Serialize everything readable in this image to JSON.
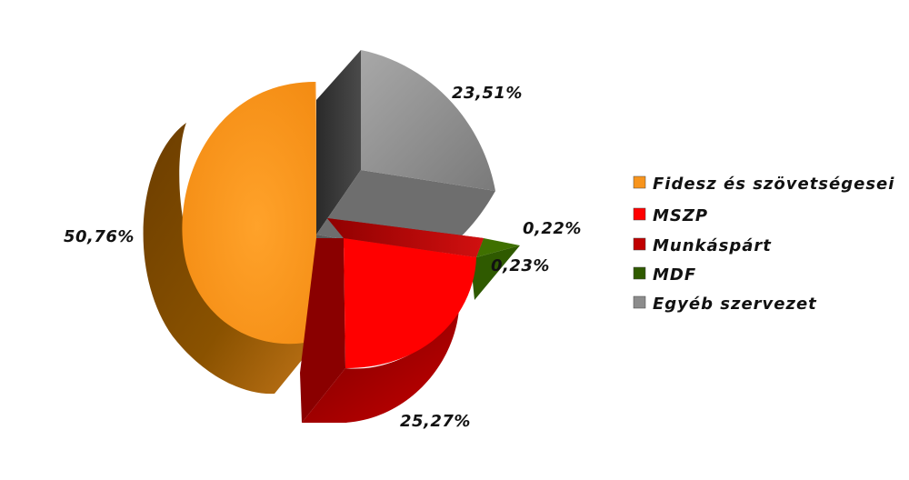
{
  "chart_data": {
    "type": "pie",
    "variant": "3d-exploded",
    "title": "",
    "legend_position": "right",
    "slices": [
      {
        "name": "Fidesz és szövetségesei",
        "value": 50.76,
        "label": "50,76%",
        "color": "#f7941d"
      },
      {
        "name": "MSZP",
        "value": 25.27,
        "label": "25,27%",
        "color": "#ff0000"
      },
      {
        "name": "Munkáspárt",
        "value": 0.22,
        "label": "0,22%",
        "color": "#c00000"
      },
      {
        "name": "MDF",
        "value": 0.23,
        "label": "0,23%",
        "color": "#2f5a00"
      },
      {
        "name": "Egyéb szervezet",
        "value": 23.51,
        "label": "23,51%",
        "color": "#8c8c8c"
      }
    ]
  }
}
